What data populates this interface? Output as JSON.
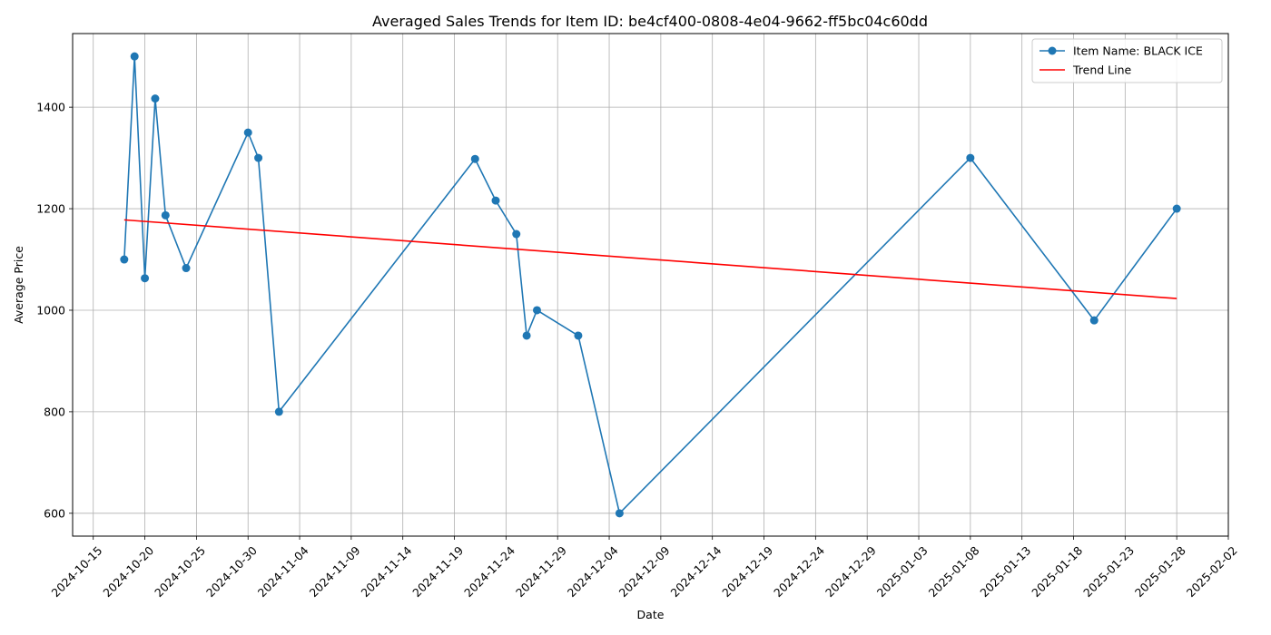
{
  "chart_data": {
    "type": "line",
    "title": "Averaged Sales Trends for Item ID: be4cf400-0808-4e04-9662-ff5bc04c60dd",
    "xlabel": "Date",
    "ylabel": "Average Price",
    "grid": true,
    "legend_position": "top-right",
    "x_ticks": [
      "2024-10-15",
      "2024-10-20",
      "2024-10-25",
      "2024-10-30",
      "2024-11-04",
      "2024-11-09",
      "2024-11-14",
      "2024-11-19",
      "2024-11-24",
      "2024-11-29",
      "2024-12-04",
      "2024-12-09",
      "2024-12-14",
      "2024-12-19",
      "2024-12-24",
      "2024-12-29",
      "2025-01-03",
      "2025-01-08",
      "2025-01-13",
      "2025-01-18",
      "2025-01-23",
      "2025-01-28",
      "2025-02-02"
    ],
    "y_ticks": [
      600,
      800,
      1000,
      1200,
      1400
    ],
    "xlim": [
      "2024-10-13",
      "2025-02-02"
    ],
    "ylim": [
      555,
      1545
    ],
    "series": [
      {
        "name": "Item Name: BLACK ICE",
        "color": "#1f77b4",
        "marker": "circle",
        "x": [
          "2024-10-18",
          "2024-10-19",
          "2024-10-20",
          "2024-10-21",
          "2024-10-22",
          "2024-10-24",
          "2024-10-30",
          "2024-10-31",
          "2024-11-02",
          "2024-11-21",
          "2024-11-23",
          "2024-11-25",
          "2024-11-26",
          "2024-11-27",
          "2024-12-01",
          "2024-12-05",
          "2025-01-08",
          "2025-01-20",
          "2025-01-28"
        ],
        "values": [
          1100,
          1500,
          1063,
          1417,
          1187,
          1083,
          1350,
          1300,
          800,
          1298,
          1216,
          1150,
          950,
          1000,
          950,
          600,
          1300,
          980,
          1200
        ]
      },
      {
        "name": "Trend Line",
        "color": "#ff0000",
        "marker": "none",
        "x": [
          "2024-10-18",
          "2025-01-28"
        ],
        "values": [
          1178,
          1023
        ]
      }
    ]
  }
}
